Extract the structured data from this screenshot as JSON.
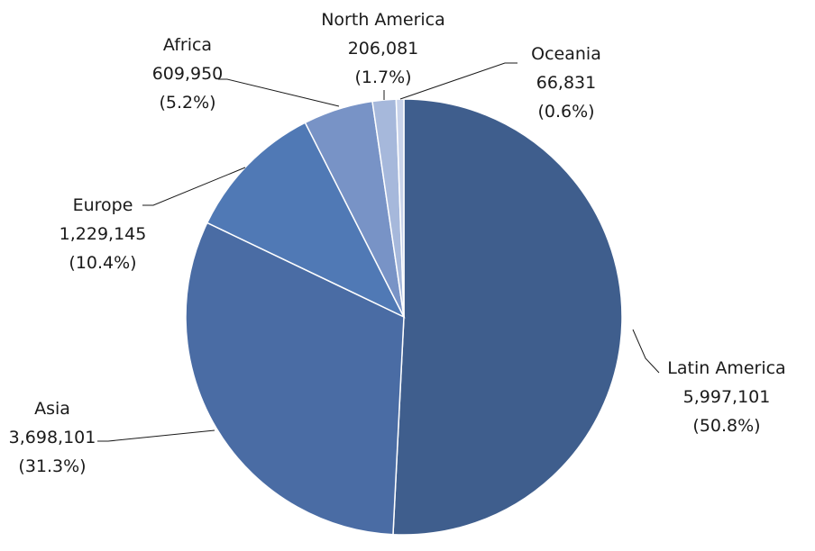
{
  "chart_data": {
    "type": "pie",
    "title": "",
    "legend": "none",
    "slices": [
      {
        "name": "Latin America",
        "value": 5997101,
        "value_text": "5,997,101",
        "pct_text": "(50.8%)",
        "color": "#3F5E8D"
      },
      {
        "name": "Asia",
        "value": 3698101,
        "value_text": "3,698,101",
        "pct_text": "(31.3%)",
        "color": "#4A6CA4"
      },
      {
        "name": "Europe",
        "value": 1229145,
        "value_text": "1,229,145",
        "pct_text": "(10.4%)",
        "color": "#5079B5"
      },
      {
        "name": "Africa",
        "value": 609950,
        "value_text": "609,950",
        "pct_text": "(5.2%)",
        "color": "#7893C6"
      },
      {
        "name": "North America",
        "value": 206081,
        "value_text": "206,081",
        "pct_text": "(1.7%)",
        "color": "#A6B8DB"
      },
      {
        "name": "Oceania",
        "value": 66831,
        "value_text": "66,831",
        "pct_text": "(0.6%)",
        "color": "#C9D3EA"
      }
    ]
  }
}
